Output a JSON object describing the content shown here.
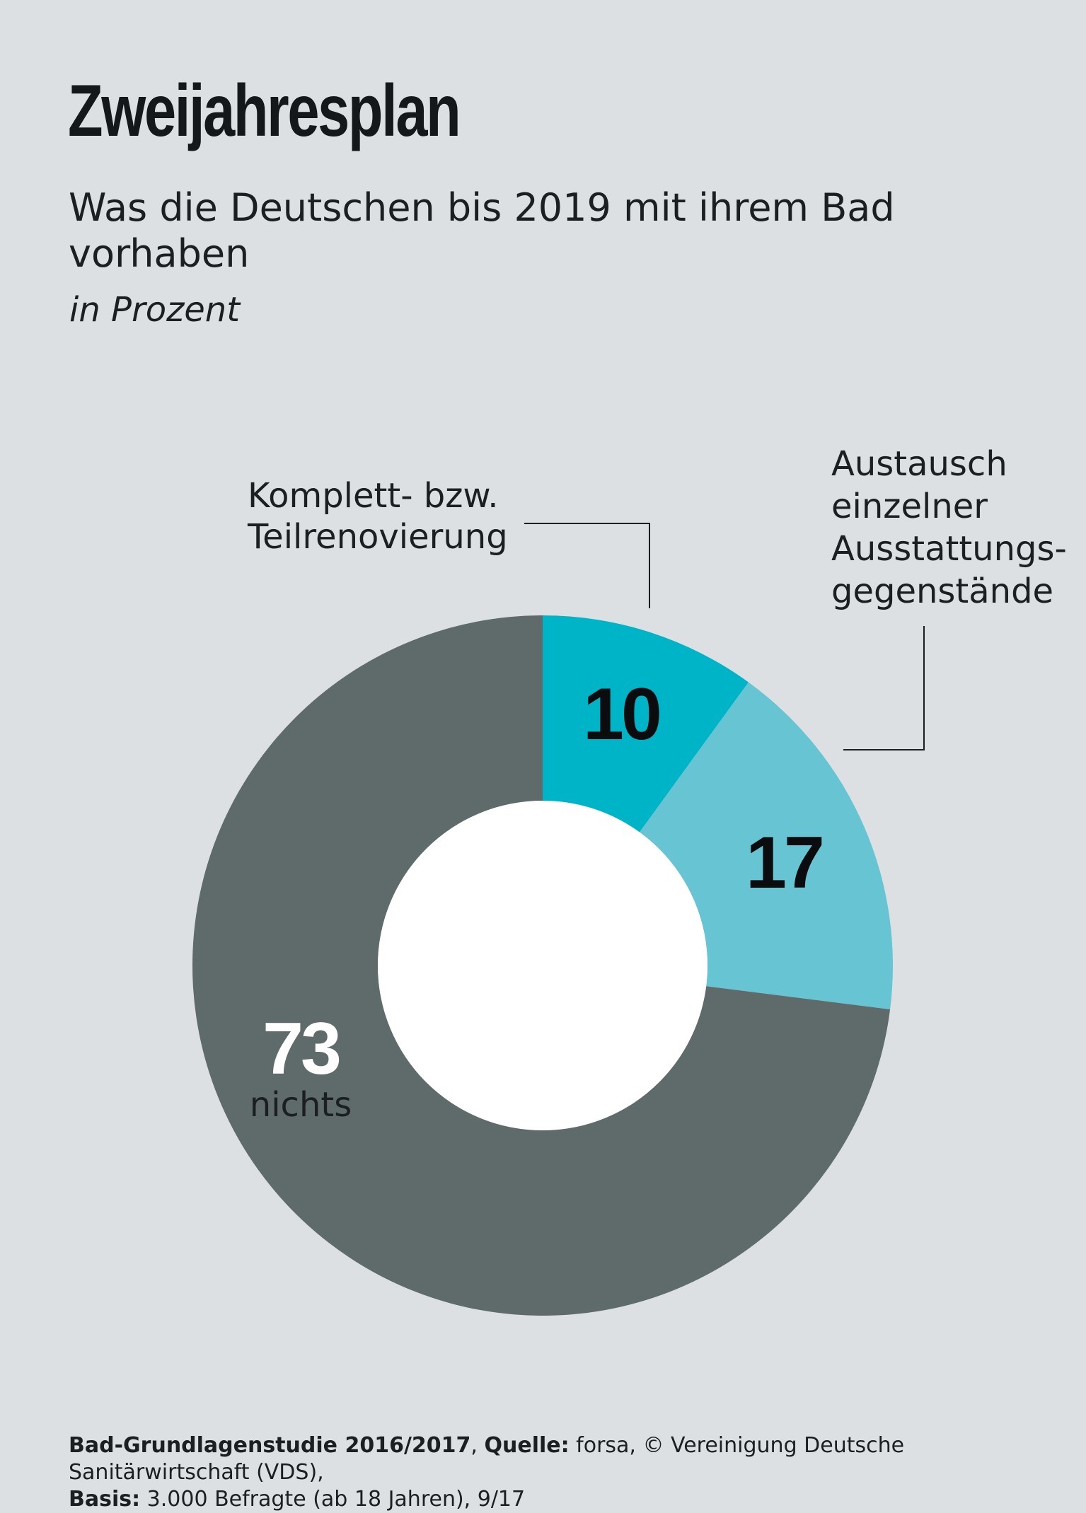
{
  "header": {
    "title": "Zweijahresplan",
    "subtitle": "Was die Deutschen bis 2019 mit ihrem Bad vorhaben",
    "unit": "in Prozent"
  },
  "colors": {
    "background": "#dde0e2",
    "slice_dark_teal": "#00b4c8",
    "slice_light_teal": "#66c4d3",
    "slice_gray": "#5f6b6a",
    "text_dark": "#1c1f22",
    "text_light": "#ffffff"
  },
  "chart_data": {
    "type": "pie",
    "unit": "in Prozent",
    "slices": [
      {
        "value": 10,
        "label_lines": [
          "Komplett- bzw.",
          "Teilrenovierung"
        ],
        "color": "#00b4c8"
      },
      {
        "value": 17,
        "label_lines": [
          "Austausch",
          "einzelner",
          "Ausstattungs-",
          "gegenstände"
        ],
        "color": "#66c4d3"
      },
      {
        "value": 73,
        "label_lines": [
          "nichts"
        ],
        "color": "#5f6b6a"
      }
    ]
  },
  "footer": {
    "study_label": "Bad-Grundlagenstudie 2016/2017",
    "source_label": "Quelle:",
    "source_text": "forsa, © Vereinigung Deutsche Sanitärwirtschaft (VDS),",
    "basis_label": "Basis:",
    "basis_text": "3.000 Befragte (ab 18 Jahren), 9/17"
  }
}
